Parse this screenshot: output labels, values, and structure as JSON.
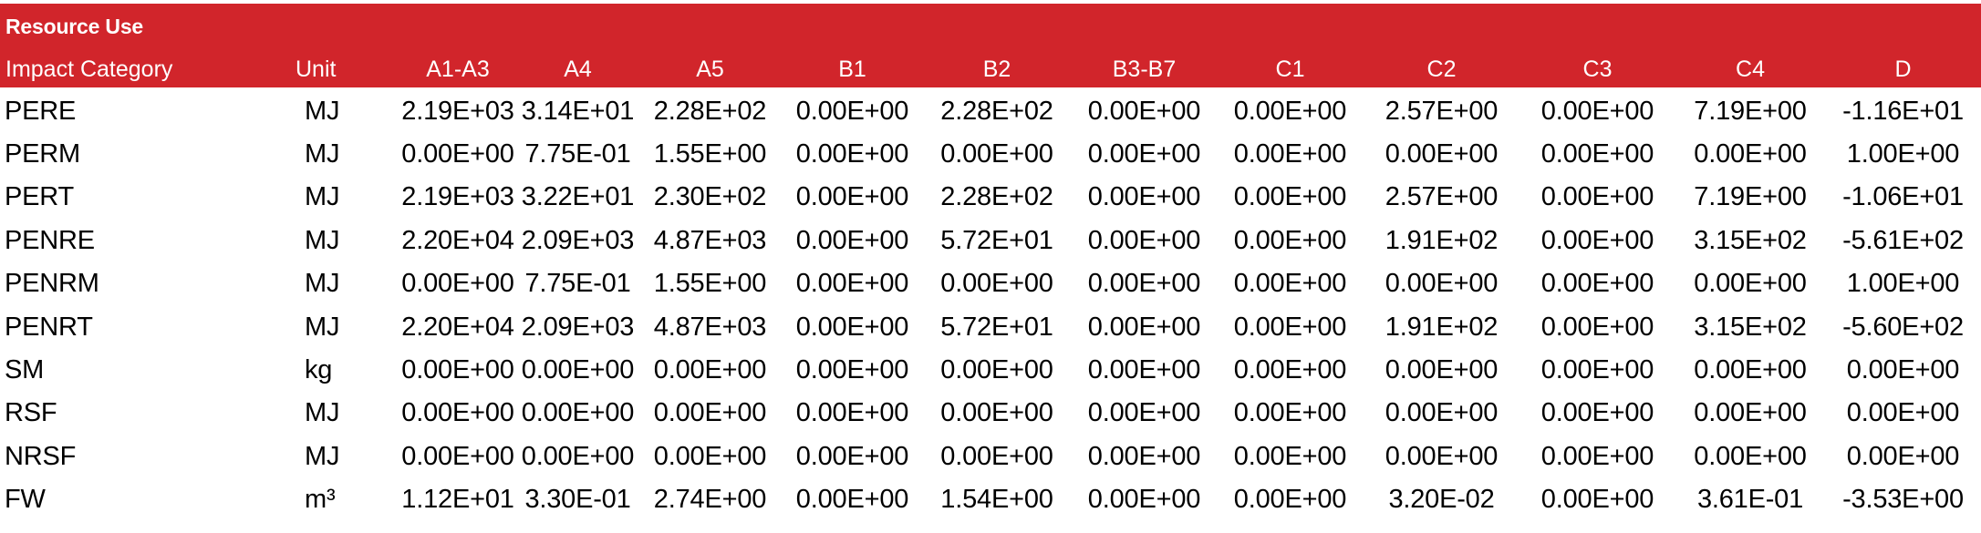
{
  "table": {
    "title": "Resource Use",
    "headers": [
      "Impact Category",
      "Unit",
      "A1-A3",
      "A4",
      "A5",
      "B1",
      "B2",
      "B3-B7",
      "C1",
      "C2",
      "C3",
      "C4",
      "D"
    ],
    "rows": [
      {
        "label": "PERE",
        "unit": "MJ",
        "values": [
          "2.19E+03",
          "3.14E+01",
          "2.28E+02",
          "0.00E+00",
          "2.28E+02",
          "0.00E+00",
          "0.00E+00",
          "2.57E+00",
          "0.00E+00",
          "7.19E+00",
          "-1.16E+01"
        ]
      },
      {
        "label": "PERM",
        "unit": "MJ",
        "values": [
          "0.00E+00",
          "7.75E-01",
          "1.55E+00",
          "0.00E+00",
          "0.00E+00",
          "0.00E+00",
          "0.00E+00",
          "0.00E+00",
          "0.00E+00",
          "0.00E+00",
          "1.00E+00"
        ]
      },
      {
        "label": "PERT",
        "unit": "MJ",
        "values": [
          "2.19E+03",
          "3.22E+01",
          "2.30E+02",
          "0.00E+00",
          "2.28E+02",
          "0.00E+00",
          "0.00E+00",
          "2.57E+00",
          "0.00E+00",
          "7.19E+00",
          "-1.06E+01"
        ]
      },
      {
        "label": "PENRE",
        "unit": "MJ",
        "values": [
          "2.20E+04",
          "2.09E+03",
          "4.87E+03",
          "0.00E+00",
          "5.72E+01",
          "0.00E+00",
          "0.00E+00",
          "1.91E+02",
          "0.00E+00",
          "3.15E+02",
          "-5.61E+02"
        ]
      },
      {
        "label": "PENRM",
        "unit": "MJ",
        "values": [
          "0.00E+00",
          "7.75E-01",
          "1.55E+00",
          "0.00E+00",
          "0.00E+00",
          "0.00E+00",
          "0.00E+00",
          "0.00E+00",
          "0.00E+00",
          "0.00E+00",
          "1.00E+00"
        ]
      },
      {
        "label": "PENRT",
        "unit": "MJ",
        "values": [
          "2.20E+04",
          "2.09E+03",
          "4.87E+03",
          "0.00E+00",
          "5.72E+01",
          "0.00E+00",
          "0.00E+00",
          "1.91E+02",
          "0.00E+00",
          "3.15E+02",
          "-5.60E+02"
        ]
      },
      {
        "label": "SM",
        "unit": "kg",
        "values": [
          "0.00E+00",
          "0.00E+00",
          "0.00E+00",
          "0.00E+00",
          "0.00E+00",
          "0.00E+00",
          "0.00E+00",
          "0.00E+00",
          "0.00E+00",
          "0.00E+00",
          "0.00E+00"
        ]
      },
      {
        "label": "RSF",
        "unit": "MJ",
        "values": [
          "0.00E+00",
          "0.00E+00",
          "0.00E+00",
          "0.00E+00",
          "0.00E+00",
          "0.00E+00",
          "0.00E+00",
          "0.00E+00",
          "0.00E+00",
          "0.00E+00",
          "0.00E+00"
        ]
      },
      {
        "label": "NRSF",
        "unit": "MJ",
        "values": [
          "0.00E+00",
          "0.00E+00",
          "0.00E+00",
          "0.00E+00",
          "0.00E+00",
          "0.00E+00",
          "0.00E+00",
          "0.00E+00",
          "0.00E+00",
          "0.00E+00",
          "0.00E+00"
        ]
      },
      {
        "label": "FW",
        "unit": "m³",
        "values": [
          "1.12E+01",
          "3.30E-01",
          "2.74E+00",
          "0.00E+00",
          "1.54E+00",
          "0.00E+00",
          "0.00E+00",
          "3.20E-02",
          "0.00E+00",
          "3.61E-01",
          "-3.53E+00"
        ]
      }
    ]
  },
  "colors": {
    "header_background": "#d1252b",
    "header_text": "#ffffff",
    "body_text": "#000000",
    "background": "#ffffff"
  }
}
